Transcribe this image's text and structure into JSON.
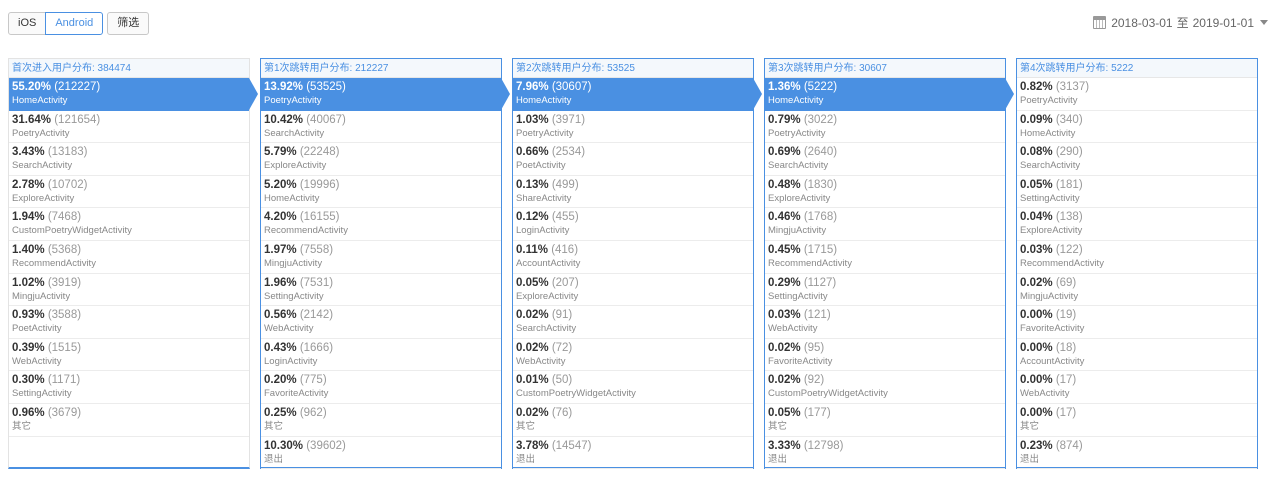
{
  "toolbar": {
    "platform_ios": "iOS",
    "platform_android": "Android",
    "filter": "筛选"
  },
  "date_range": {
    "start": "2018-03-01",
    "sep": "至",
    "end": "2019-01-01",
    "icon": "calendar-icon"
  },
  "colors": {
    "accent": "#4a90e2"
  },
  "columns": [
    {
      "title": "首次进入用户分布: 384474",
      "rows": [
        {
          "pct": "55.20%",
          "count": "(212227)",
          "name": "HomeActivity",
          "highlight": true
        },
        {
          "pct": "31.64%",
          "count": "(121654)",
          "name": "PoetryActivity"
        },
        {
          "pct": "3.43%",
          "count": "(13183)",
          "name": "SearchActivity"
        },
        {
          "pct": "2.78%",
          "count": "(10702)",
          "name": "ExploreActivity"
        },
        {
          "pct": "1.94%",
          "count": "(7468)",
          "name": "CustomPoetryWidgetActivity"
        },
        {
          "pct": "1.40%",
          "count": "(5368)",
          "name": "RecommendActivity"
        },
        {
          "pct": "1.02%",
          "count": "(3919)",
          "name": "MingjuActivity"
        },
        {
          "pct": "0.93%",
          "count": "(3588)",
          "name": "PoetActivity"
        },
        {
          "pct": "0.39%",
          "count": "(1515)",
          "name": "WebActivity"
        },
        {
          "pct": "0.30%",
          "count": "(1171)",
          "name": "SettingActivity"
        },
        {
          "pct": "0.96%",
          "count": "(3679)",
          "name": "其它"
        }
      ]
    },
    {
      "title": "第1次跳转用户分布: 212227",
      "rows": [
        {
          "pct": "13.92%",
          "count": "(53525)",
          "name": "PoetryActivity",
          "highlight": true
        },
        {
          "pct": "10.42%",
          "count": "(40067)",
          "name": "SearchActivity"
        },
        {
          "pct": "5.79%",
          "count": "(22248)",
          "name": "ExploreActivity"
        },
        {
          "pct": "5.20%",
          "count": "(19996)",
          "name": "HomeActivity"
        },
        {
          "pct": "4.20%",
          "count": "(16155)",
          "name": "RecommendActivity"
        },
        {
          "pct": "1.97%",
          "count": "(7558)",
          "name": "MingjuActivity"
        },
        {
          "pct": "1.96%",
          "count": "(7531)",
          "name": "SettingActivity"
        },
        {
          "pct": "0.56%",
          "count": "(2142)",
          "name": "WebActivity"
        },
        {
          "pct": "0.43%",
          "count": "(1666)",
          "name": "LoginActivity"
        },
        {
          "pct": "0.20%",
          "count": "(775)",
          "name": "FavoriteActivity"
        },
        {
          "pct": "0.25%",
          "count": "(962)",
          "name": "其它"
        },
        {
          "pct": "10.30%",
          "count": "(39602)",
          "name": "退出"
        }
      ]
    },
    {
      "title": "第2次跳转用户分布: 53525",
      "rows": [
        {
          "pct": "7.96%",
          "count": "(30607)",
          "name": "HomeActivity",
          "highlight": true
        },
        {
          "pct": "1.03%",
          "count": "(3971)",
          "name": "PoetryActivity"
        },
        {
          "pct": "0.66%",
          "count": "(2534)",
          "name": "PoetActivity"
        },
        {
          "pct": "0.13%",
          "count": "(499)",
          "name": "ShareActivity"
        },
        {
          "pct": "0.12%",
          "count": "(455)",
          "name": "LoginActivity"
        },
        {
          "pct": "0.11%",
          "count": "(416)",
          "name": "AccountActivity"
        },
        {
          "pct": "0.05%",
          "count": "(207)",
          "name": "ExploreActivity"
        },
        {
          "pct": "0.02%",
          "count": "(91)",
          "name": "SearchActivity"
        },
        {
          "pct": "0.02%",
          "count": "(72)",
          "name": "WebActivity"
        },
        {
          "pct": "0.01%",
          "count": "(50)",
          "name": "CustomPoetryWidgetActivity"
        },
        {
          "pct": "0.02%",
          "count": "(76)",
          "name": "其它"
        },
        {
          "pct": "3.78%",
          "count": "(14547)",
          "name": "退出"
        }
      ]
    },
    {
      "title": "第3次跳转用户分布: 30607",
      "rows": [
        {
          "pct": "1.36%",
          "count": "(5222)",
          "name": "HomeActivity",
          "highlight": true
        },
        {
          "pct": "0.79%",
          "count": "(3022)",
          "name": "PoetryActivity"
        },
        {
          "pct": "0.69%",
          "count": "(2640)",
          "name": "SearchActivity"
        },
        {
          "pct": "0.48%",
          "count": "(1830)",
          "name": "ExploreActivity"
        },
        {
          "pct": "0.46%",
          "count": "(1768)",
          "name": "MingjuActivity"
        },
        {
          "pct": "0.45%",
          "count": "(1715)",
          "name": "RecommendActivity"
        },
        {
          "pct": "0.29%",
          "count": "(1127)",
          "name": "SettingActivity"
        },
        {
          "pct": "0.03%",
          "count": "(121)",
          "name": "WebActivity"
        },
        {
          "pct": "0.02%",
          "count": "(95)",
          "name": "FavoriteActivity"
        },
        {
          "pct": "0.02%",
          "count": "(92)",
          "name": "CustomPoetryWidgetActivity"
        },
        {
          "pct": "0.05%",
          "count": "(177)",
          "name": "其它"
        },
        {
          "pct": "3.33%",
          "count": "(12798)",
          "name": "退出"
        }
      ]
    },
    {
      "title": "第4次跳转用户分布: 5222",
      "rows": [
        {
          "pct": "0.82%",
          "count": "(3137)",
          "name": "PoetryActivity"
        },
        {
          "pct": "0.09%",
          "count": "(340)",
          "name": "HomeActivity"
        },
        {
          "pct": "0.08%",
          "count": "(290)",
          "name": "SearchActivity"
        },
        {
          "pct": "0.05%",
          "count": "(181)",
          "name": "SettingActivity"
        },
        {
          "pct": "0.04%",
          "count": "(138)",
          "name": "ExploreActivity"
        },
        {
          "pct": "0.03%",
          "count": "(122)",
          "name": "RecommendActivity"
        },
        {
          "pct": "0.02%",
          "count": "(69)",
          "name": "MingjuActivity"
        },
        {
          "pct": "0.00%",
          "count": "(19)",
          "name": "FavoriteActivity"
        },
        {
          "pct": "0.00%",
          "count": "(18)",
          "name": "AccountActivity"
        },
        {
          "pct": "0.00%",
          "count": "(17)",
          "name": "WebActivity"
        },
        {
          "pct": "0.00%",
          "count": "(17)",
          "name": "其它"
        },
        {
          "pct": "0.23%",
          "count": "(874)",
          "name": "退出"
        }
      ]
    }
  ]
}
